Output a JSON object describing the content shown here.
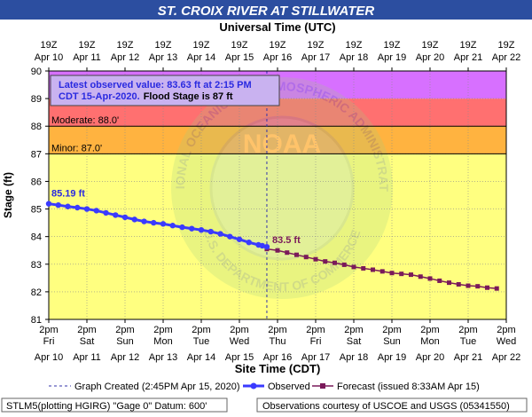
{
  "chart_data": {
    "type": "line",
    "title": "ST. CROIX RIVER AT STILLWATER",
    "top_axis_title": "Universal Time (UTC)",
    "xlabel": "Site Time (CDT)",
    "ylabel": "Stage (ft)",
    "ylim": [
      81,
      90
    ],
    "y_ticks": [
      81,
      82,
      83,
      84,
      85,
      86,
      87,
      88,
      89,
      90
    ],
    "x_days": 12,
    "top_ticks": [
      {
        "line1": "19Z",
        "line2": "Apr 10"
      },
      {
        "line1": "19Z",
        "line2": "Apr 11"
      },
      {
        "line1": "19Z",
        "line2": "Apr 12"
      },
      {
        "line1": "19Z",
        "line2": "Apr 13"
      },
      {
        "line1": "19Z",
        "line2": "Apr 14"
      },
      {
        "line1": "19Z",
        "line2": "Apr 15"
      },
      {
        "line1": "19Z",
        "line2": "Apr 16"
      },
      {
        "line1": "19Z",
        "line2": "Apr 17"
      },
      {
        "line1": "19Z",
        "line2": "Apr 18"
      },
      {
        "line1": "19Z",
        "line2": "Apr 19"
      },
      {
        "line1": "19Z",
        "line2": "Apr 20"
      },
      {
        "line1": "19Z",
        "line2": "Apr 21"
      },
      {
        "line1": "19Z",
        "line2": "Apr 22"
      }
    ],
    "bottom_ticks": [
      {
        "time": "2pm",
        "dow": "Fri",
        "date": "Apr 10"
      },
      {
        "time": "2pm",
        "dow": "Sat",
        "date": "Apr 11"
      },
      {
        "time": "2pm",
        "dow": "Sun",
        "date": "Apr 12"
      },
      {
        "time": "2pm",
        "dow": "Mon",
        "date": "Apr 13"
      },
      {
        "time": "2pm",
        "dow": "Tue",
        "date": "Apr 14"
      },
      {
        "time": "2pm",
        "dow": "Wed",
        "date": "Apr 15"
      },
      {
        "time": "2pm",
        "dow": "Thu",
        "date": "Apr 16"
      },
      {
        "time": "2pm",
        "dow": "Fri",
        "date": "Apr 17"
      },
      {
        "time": "2pm",
        "dow": "Sat",
        "date": "Apr 18"
      },
      {
        "time": "2pm",
        "dow": "Sun",
        "date": "Apr 19"
      },
      {
        "time": "2pm",
        "dow": "Mon",
        "date": "Apr 20"
      },
      {
        "time": "2pm",
        "dow": "Tue",
        "date": "Apr 21"
      },
      {
        "time": "2pm",
        "dow": "Wed",
        "date": "Apr 22"
      }
    ],
    "bands": [
      {
        "from": 81,
        "to": 87,
        "color": "#ffff80"
      },
      {
        "from": 87,
        "to": 88,
        "color": "#ffb340"
      },
      {
        "from": 88,
        "to": 89,
        "color": "#ff7070"
      },
      {
        "from": 89,
        "to": 90,
        "color": "#d770ff"
      }
    ],
    "stage_lines": [
      {
        "label": "Moderate:  88.0'",
        "value": 88
      },
      {
        "label": "Minor:  87.0'",
        "value": 87
      }
    ],
    "series": [
      {
        "name": "Observed",
        "color": "#3a3aff",
        "points": [
          [
            0,
            85.19
          ],
          [
            0.25,
            85.14
          ],
          [
            0.5,
            85.09
          ],
          [
            0.75,
            85.05
          ],
          [
            1,
            85.0
          ],
          [
            1.25,
            84.94
          ],
          [
            1.5,
            84.86
          ],
          [
            1.75,
            84.78
          ],
          [
            2,
            84.7
          ],
          [
            2.25,
            84.62
          ],
          [
            2.5,
            84.55
          ],
          [
            2.75,
            84.5
          ],
          [
            3,
            84.46
          ],
          [
            3.25,
            84.4
          ],
          [
            3.5,
            84.34
          ],
          [
            3.75,
            84.29
          ],
          [
            4,
            84.24
          ],
          [
            4.25,
            84.18
          ],
          [
            4.5,
            84.1
          ],
          [
            4.75,
            84.0
          ],
          [
            5,
            83.9
          ],
          [
            5.25,
            83.79
          ],
          [
            5.5,
            83.7
          ],
          [
            5.6,
            83.67
          ],
          [
            5.72,
            83.63
          ]
        ]
      },
      {
        "name": "Forecast (issued 8:33AM Apr 15)",
        "color": "#7a1a5a",
        "points": [
          [
            5.72,
            83.55
          ],
          [
            6,
            83.5
          ],
          [
            6.25,
            83.42
          ],
          [
            6.5,
            83.34
          ],
          [
            6.75,
            83.26
          ],
          [
            7,
            83.18
          ],
          [
            7.25,
            83.1
          ],
          [
            7.5,
            83.05
          ],
          [
            7.75,
            82.98
          ],
          [
            8,
            82.9
          ],
          [
            8.25,
            82.85
          ],
          [
            8.5,
            82.8
          ],
          [
            8.75,
            82.74
          ],
          [
            9,
            82.68
          ],
          [
            9.25,
            82.65
          ],
          [
            9.5,
            82.62
          ],
          [
            9.75,
            82.55
          ],
          [
            10,
            82.48
          ],
          [
            10.25,
            82.4
          ],
          [
            10.5,
            82.33
          ],
          [
            10.75,
            82.27
          ],
          [
            11,
            82.22
          ],
          [
            11.25,
            82.2
          ],
          [
            11.5,
            82.15
          ],
          [
            11.75,
            82.12
          ]
        ]
      }
    ],
    "annotations": {
      "start_label": "85.19 ft",
      "current_label": "83.5 ft",
      "graph_created_label": "Graph Created (2:45PM Apr 15, 2020)"
    },
    "latest_box": {
      "line1": "Latest observed value: 83.63 ft at 2:15 PM",
      "line2_blue": "CDT 15-Apr-2020.",
      "line2_black": "Flood Stage is 87 ft"
    },
    "watermark_text": "NATIONAL OCEANIC AND ATMOSPHERIC ADMINISTRATION",
    "watermark_bottom": "U.S. DEPARTMENT OF COMMERCE",
    "watermark_center": "NOAA"
  },
  "footer": {
    "left": "STLM5(plotting HGIRG) \"Gage 0\" Datum: 600'",
    "right": "Observations courtesy of USCOE and USGS (05341550)"
  }
}
